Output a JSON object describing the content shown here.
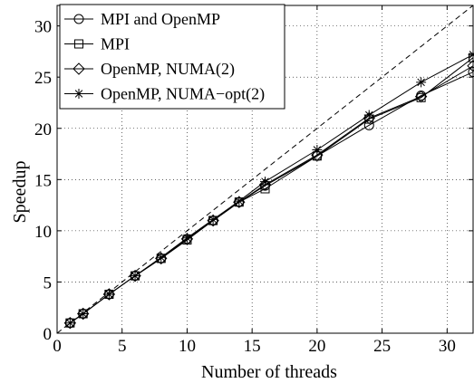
{
  "chart_data": {
    "type": "line",
    "title": "",
    "xlabel": "Number of threads",
    "ylabel": "Speedup",
    "xlim": [
      0,
      32
    ],
    "ylim": [
      0,
      32
    ],
    "xticks": [
      0,
      5,
      10,
      15,
      20,
      25,
      30
    ],
    "yticks": [
      0,
      5,
      10,
      15,
      20,
      25,
      30
    ],
    "grid": true,
    "legend_position": "top-left",
    "reference_line": {
      "style": "dashed",
      "from": [
        0,
        0
      ],
      "to": [
        32,
        32
      ]
    },
    "series": [
      {
        "name": "MPI and OpenMP",
        "marker": "circle",
        "x": [
          1,
          2,
          4,
          6,
          8,
          10,
          12,
          14,
          16,
          20,
          24,
          28,
          32
        ],
        "y": [
          1.0,
          1.9,
          3.8,
          5.6,
          7.3,
          9.2,
          11.0,
          12.8,
          14.4,
          17.3,
          20.3,
          23.2,
          25.5
        ]
      },
      {
        "name": "MPI",
        "marker": "square",
        "x": [
          1,
          2,
          4,
          6,
          8,
          10,
          12,
          14,
          16,
          20,
          24,
          28,
          32
        ],
        "y": [
          1.0,
          1.9,
          3.8,
          5.6,
          7.3,
          9.1,
          11.0,
          12.8,
          14.1,
          17.3,
          20.9,
          23.0,
          26.9
        ]
      },
      {
        "name": "OpenMP, NUMA(2)",
        "marker": "diamond",
        "x": [
          1,
          2,
          4,
          6,
          8,
          10,
          12,
          14,
          16,
          20,
          24,
          28,
          32
        ],
        "y": [
          1.0,
          1.9,
          3.8,
          5.6,
          7.3,
          9.2,
          11.0,
          12.8,
          14.5,
          17.4,
          21.0,
          23.1,
          26.1
        ]
      },
      {
        "name": "OpenMP, NUMA−opt(2)",
        "marker": "star",
        "x": [
          1,
          2,
          4,
          6,
          8,
          10,
          12,
          14,
          16,
          20,
          24,
          28,
          32
        ],
        "y": [
          1.0,
          1.9,
          3.8,
          5.6,
          7.4,
          9.3,
          11.1,
          12.9,
          14.8,
          17.9,
          21.3,
          24.5,
          27.2
        ]
      }
    ]
  }
}
